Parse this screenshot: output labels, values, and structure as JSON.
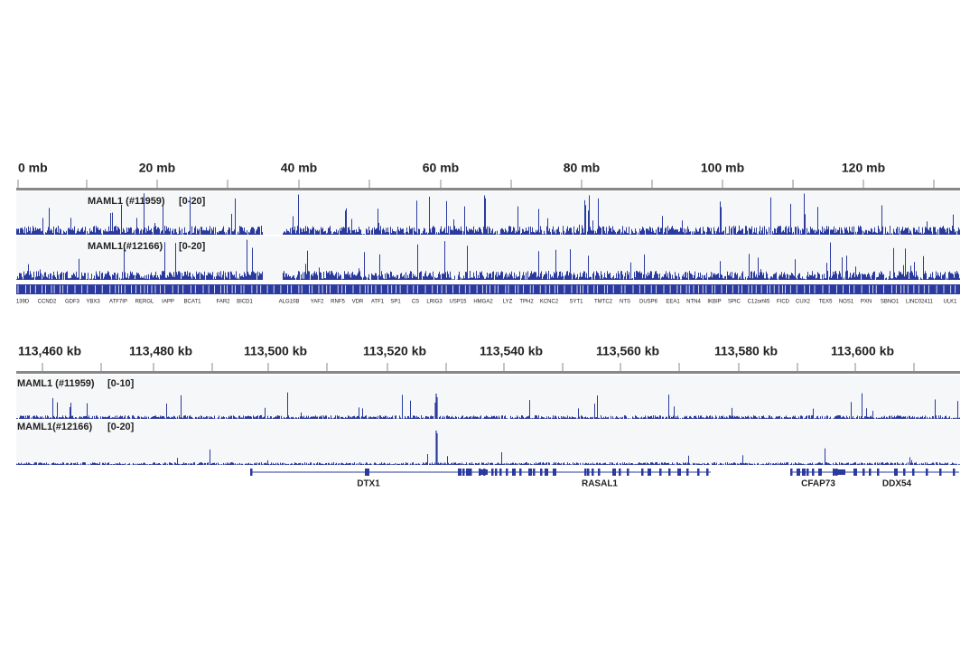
{
  "panels": [
    {
      "ruler": [
        "0 mb",
        "20 mb",
        "40 mb",
        "60 mb",
        "80 mb",
        "100 mb",
        "120 mb"
      ],
      "tracks": [
        {
          "name": "MAML1 (#11959)",
          "range": "[0-20]"
        },
        {
          "name": "MAML1(#12166)",
          "range": "[0-20]"
        }
      ],
      "genes": [
        "139D",
        "CCND2",
        "GDF3",
        "YBX3",
        "ATF7IP",
        "RERGL",
        "IAPP",
        "BCAT1",
        "FAR2",
        "BICD1",
        "ALG10B",
        "YAF2",
        "RNF5",
        "VDR",
        "ATF1",
        "SP1",
        "CS",
        "LRIG3",
        "USP15",
        "HMGA2",
        "LYZ",
        "TPH2",
        "KCNC2",
        "SYT1",
        "TMTC2",
        "NTS",
        "DUSP6",
        "EEA1",
        "NTN4",
        "IKBIP",
        "SPIC",
        "C12orf45",
        "FICD",
        "CUX2",
        "TEX5",
        "NOS1",
        "PXN",
        "SBNO1",
        "LINC02411",
        "ULK1"
      ]
    },
    {
      "ruler": [
        "113,460 kb",
        "113,480 kb",
        "113,500 kb",
        "113,520 kb",
        "113,540 kb",
        "113,560 kb",
        "113,580 kb",
        "113,600 kb"
      ],
      "tracks": [
        {
          "name": "MAML1 (#11959)",
          "range": "[0-10]"
        },
        {
          "name": "MAML1(#12166)",
          "range": "[0-20]"
        }
      ],
      "genes": [
        "DTX1",
        "RASAL1",
        "CFAP73",
        "DDX54"
      ]
    }
  ]
}
